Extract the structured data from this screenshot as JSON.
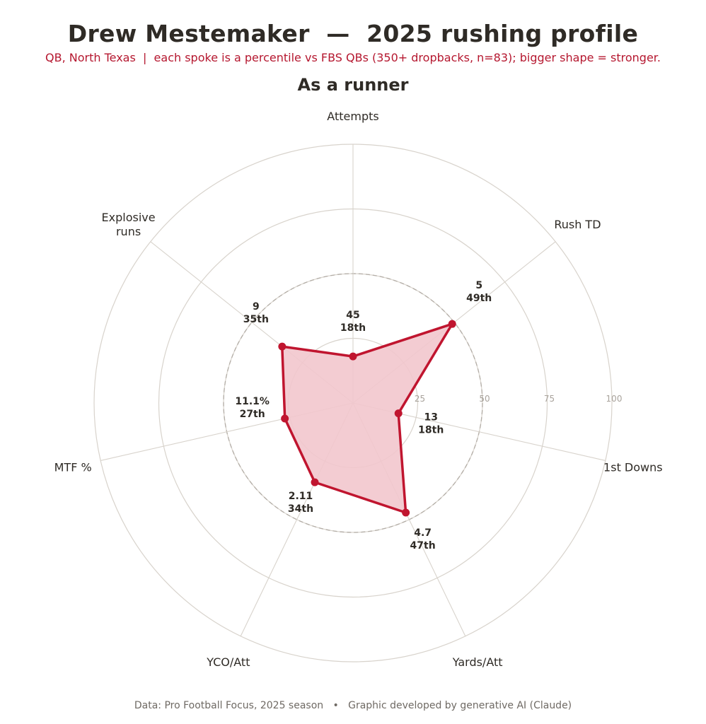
{
  "header": {
    "title": "Drew Mestemaker  —  2025 rushing profile",
    "subtitle": "QB, North Texas  |  each spoke is a percentile vs FBS QBs (350+ dropbacks, n=83); bigger shape = stronger."
  },
  "footer": {
    "text": "Data: Pro Football Focus, 2025 season   •   Graphic developed by generative AI (Claude)"
  },
  "colors": {
    "accent": "#c0152f",
    "fill": "#f2c6cd",
    "grid": "#d8d3cc",
    "reference_ring": "#b3ada6"
  },
  "chart_data": {
    "type": "radar",
    "title": "As a runner",
    "rlim": [
      0,
      100
    ],
    "rings": [
      25,
      50,
      75,
      100
    ],
    "reference_ring": 50,
    "axes": [
      {
        "label": "Attempts",
        "raw": "45",
        "rank": "18th",
        "percentile": 18
      },
      {
        "label": "Rush TD",
        "raw": "5",
        "rank": "49th",
        "percentile": 49
      },
      {
        "label": "1st Downs",
        "raw": "13",
        "rank": "18th",
        "percentile": 18
      },
      {
        "label": "Yards/Att",
        "raw": "4.7",
        "rank": "47th",
        "percentile": 47
      },
      {
        "label": "YCO/Att",
        "raw": "2.11",
        "rank": "34th",
        "percentile": 34
      },
      {
        "label": "MTF %",
        "raw": "11.1%",
        "rank": "27th",
        "percentile": 27
      },
      {
        "label": "Explosive\nruns",
        "raw": "9",
        "rank": "35th",
        "percentile": 35
      }
    ]
  }
}
